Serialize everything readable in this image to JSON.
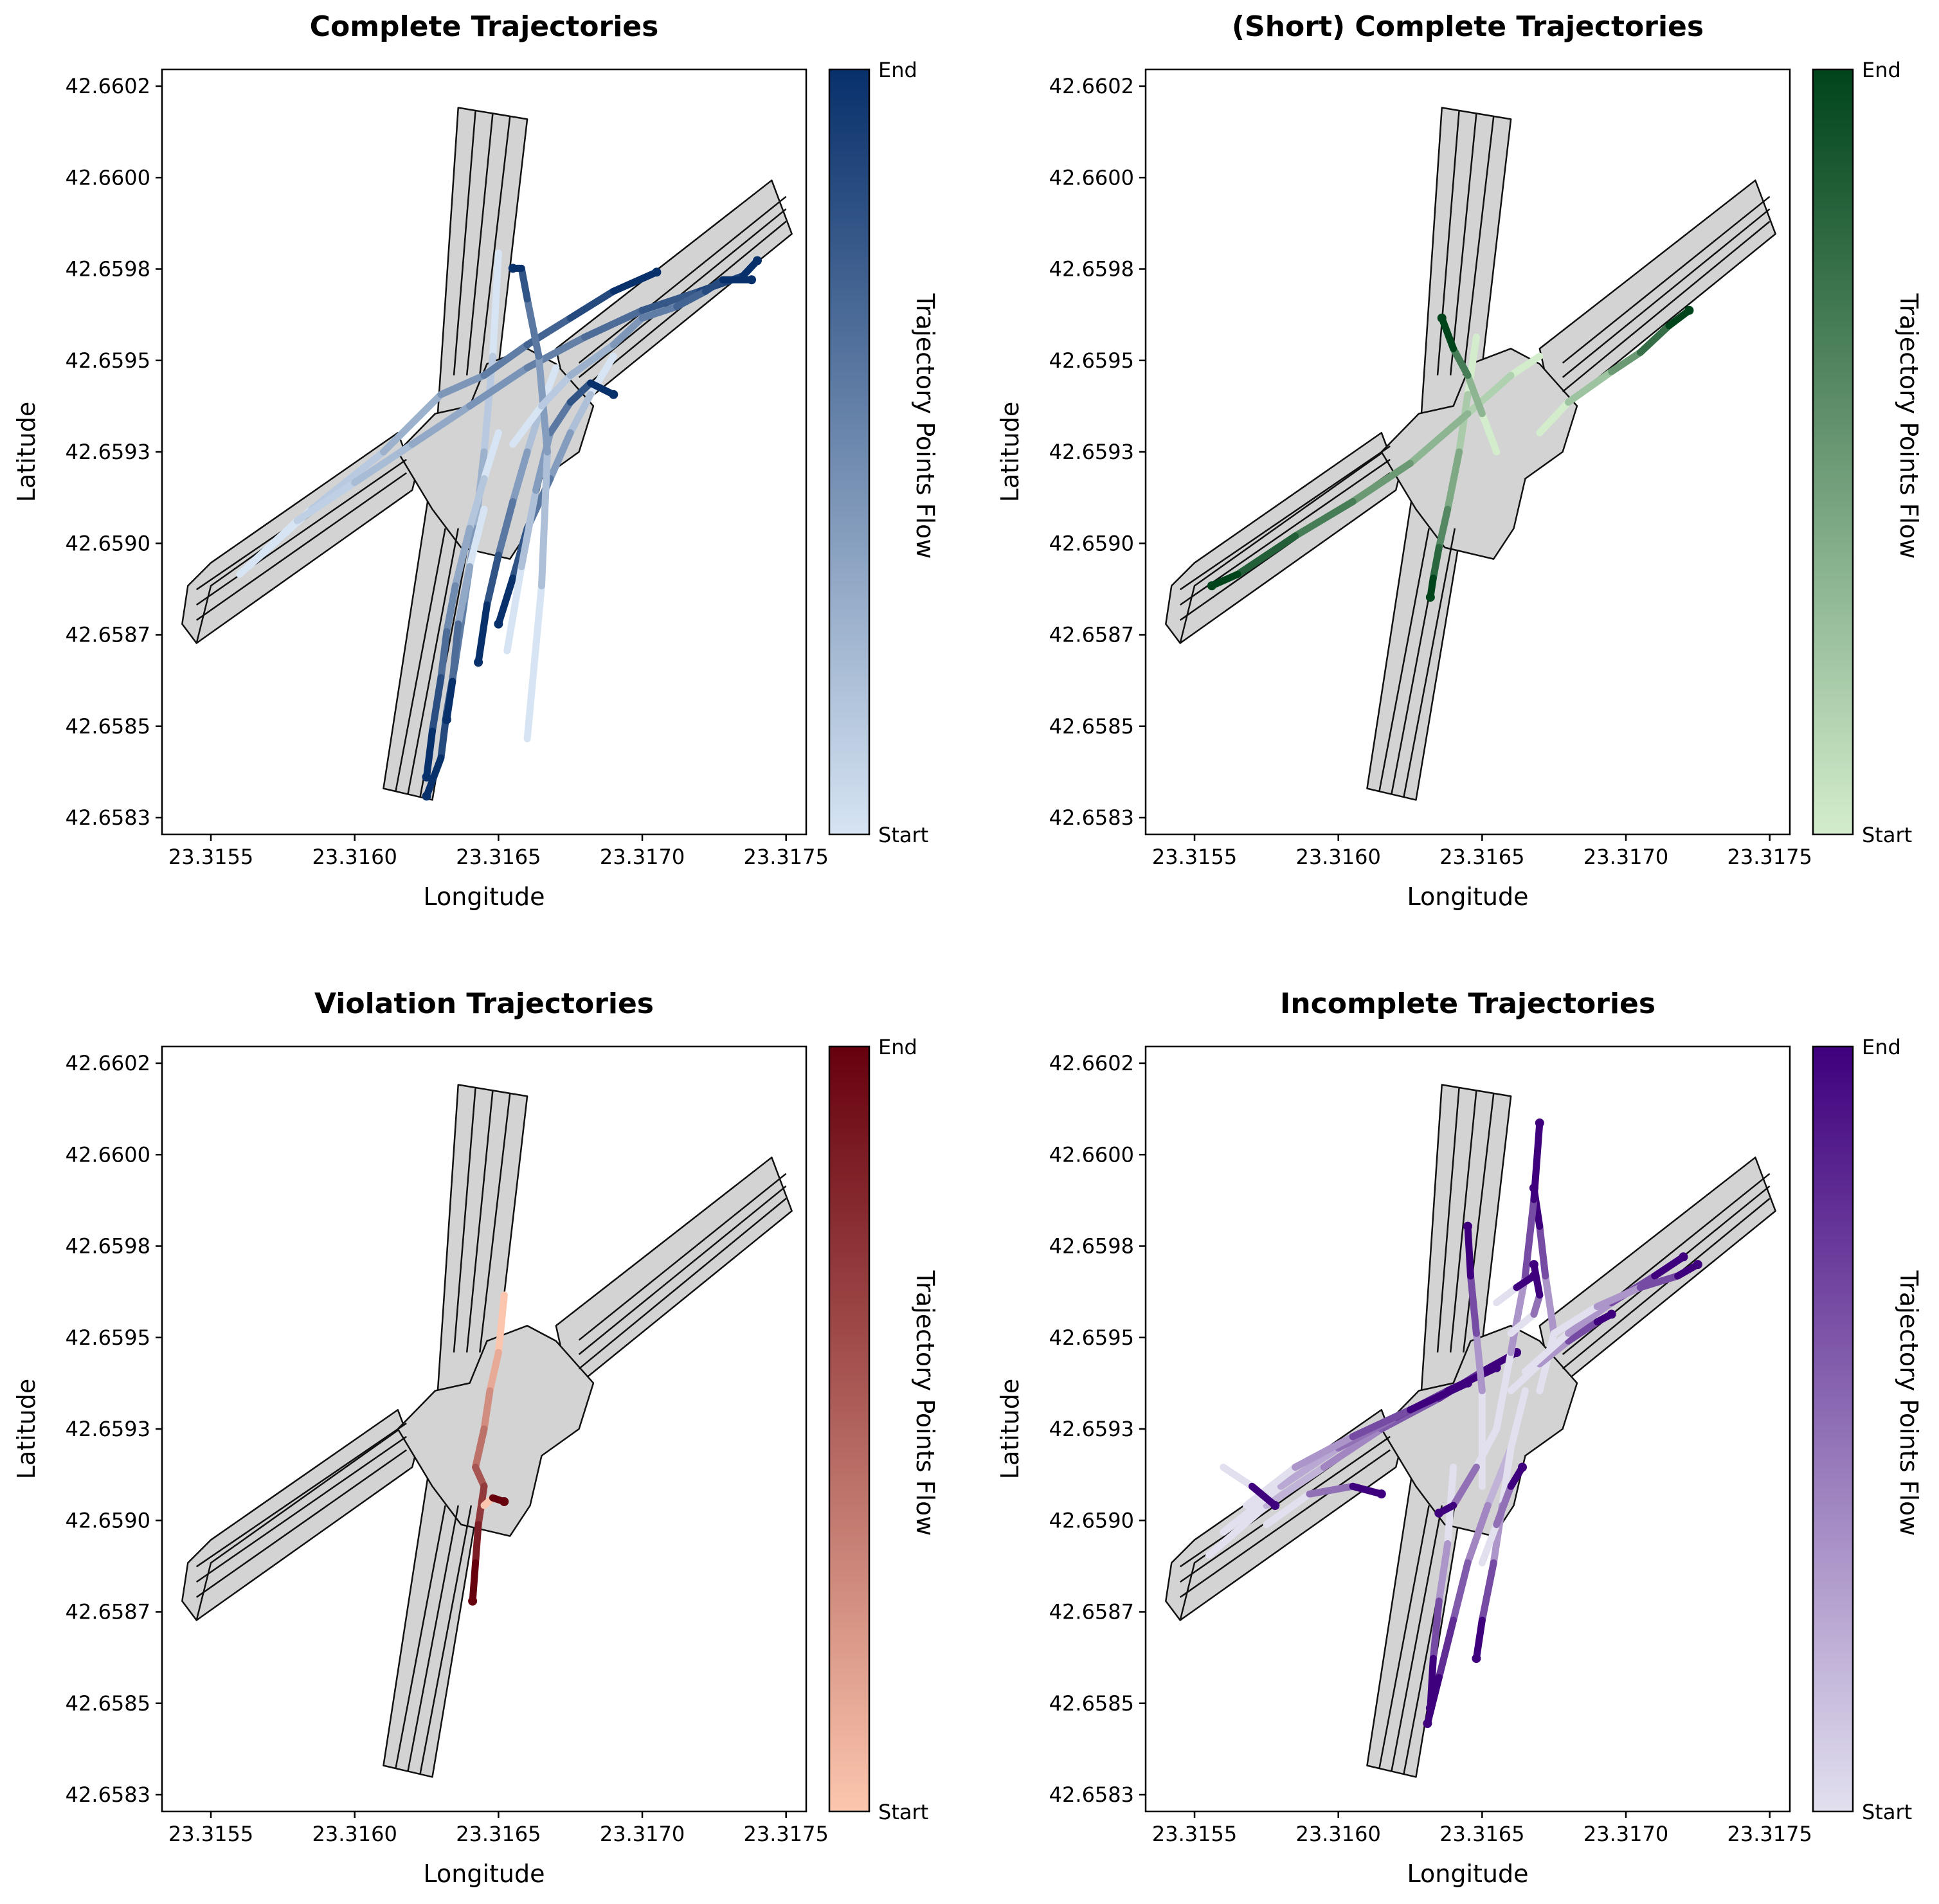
{
  "chart_data": [
    {
      "type": "scatter",
      "title": "Complete Trajectories",
      "xlabel": "Longitude",
      "ylabel": "Latitude",
      "colorbar_label": "Trajectory Points Flow",
      "colorbar_min_label": "Start",
      "colorbar_max_label": "End",
      "colormap": [
        "#d6e4f3",
        "#08306b"
      ],
      "xlim": [
        23.31533,
        23.31757
      ],
      "ylim": [
        42.65825,
        42.66025
      ],
      "xticks": [
        "23.3155",
        "23.3160",
        "23.3165",
        "23.3170",
        "23.3175"
      ],
      "yticks": [
        "42.6583",
        "42.6585",
        "42.6587",
        "42.6590",
        "42.6593",
        "42.6595",
        "42.6598",
        "42.6600",
        "42.6602"
      ],
      "series": [
        {
          "x": [
            23.3165,
            23.31648,
            23.31645,
            23.31642,
            23.31638,
            23.31635,
            23.31632,
            23.3163,
            23.31625
          ],
          "y": [
            42.65977,
            42.6595,
            42.65925,
            42.65905,
            42.65885,
            42.6587,
            42.65857,
            42.65845,
            42.65835
          ]
        },
        {
          "x": [
            23.31563,
            23.31585,
            23.3161,
            23.3163,
            23.31645,
            23.3166,
            23.31675,
            23.3169,
            23.31705
          ],
          "y": [
            42.65895,
            42.6591,
            42.65925,
            42.6594,
            42.65945,
            42.65953,
            42.6596,
            42.65967,
            42.65972
          ]
        },
        {
          "x": [
            23.3156,
            23.3158,
            23.316,
            23.3162,
            23.3164,
            23.3166,
            23.3168,
            23.317,
            23.3172,
            23.31735,
            23.3174
          ],
          "y": [
            42.65893,
            42.65907,
            42.65917,
            42.65927,
            42.65937,
            42.65947,
            42.65955,
            42.65962,
            42.65967,
            42.65971,
            42.65975
          ]
        },
        {
          "x": [
            23.3165,
            23.31645,
            23.3164,
            23.31635,
            23.31632,
            23.3163,
            23.31627,
            23.31625
          ],
          "y": [
            42.6593,
            42.65918,
            42.65905,
            42.6589,
            42.65878,
            42.65866,
            42.65852,
            42.6584
          ]
        },
        {
          "x": [
            23.3167,
            23.31665,
            23.3166,
            23.31655,
            23.3165,
            23.31646,
            23.31643
          ],
          "y": [
            42.65947,
            42.65937,
            42.65925,
            42.65912,
            42.65898,
            42.65885,
            42.6587
          ]
        },
        {
          "x": [
            23.3169,
            23.31682,
            23.31675,
            23.31668,
            23.3166,
            23.31655,
            23.3165
          ],
          "y": [
            42.6595,
            42.6594,
            42.6593,
            42.65918,
            42.65905,
            42.65892,
            42.6588
          ]
        },
        {
          "x": [
            23.31653,
            23.31658,
            23.31663,
            23.31668,
            23.31675,
            23.31682,
            23.3169
          ],
          "y": [
            42.65873,
            42.65895,
            42.65915,
            42.6593,
            42.65938,
            42.65943,
            42.6594
          ]
        },
        {
          "x": [
            23.3166,
            23.31665,
            23.31667,
            23.31664,
            23.3166,
            23.31658,
            23.31655
          ],
          "y": [
            42.6585,
            42.6589,
            42.65925,
            42.6595,
            42.65965,
            42.65973,
            42.65973
          ]
        },
        {
          "x": [
            23.31655,
            23.31665,
            23.31675,
            23.3169,
            23.317,
            23.31712,
            23.31722,
            23.31728,
            23.31738
          ],
          "y": [
            42.65927,
            42.65937,
            42.65945,
            42.65953,
            42.6596,
            42.65963,
            42.65967,
            42.6597,
            42.6597
          ]
        },
        {
          "x": [
            23.31645,
            23.3164,
            23.31636,
            23.31634,
            23.31632
          ],
          "y": [
            42.6591,
            42.65895,
            42.6588,
            42.65865,
            42.65855
          ]
        }
      ]
    },
    {
      "type": "scatter",
      "title": "(Short) Complete Trajectories",
      "xlabel": "Longitude",
      "ylabel": "Latitude",
      "colorbar_label": "Trajectory Points Flow",
      "colorbar_min_label": "Start",
      "colorbar_max_label": "End",
      "colormap": [
        "#d3edcc",
        "#00441b"
      ],
      "xlim": [
        23.31533,
        23.31757
      ],
      "ylim": [
        42.65825,
        42.66025
      ],
      "xticks": [
        "23.3155",
        "23.3160",
        "23.3165",
        "23.3170",
        "23.3175"
      ],
      "yticks": [
        "42.6583",
        "42.6585",
        "42.6587",
        "42.6590",
        "42.6593",
        "42.6595",
        "42.6598",
        "42.6600",
        "42.6602"
      ],
      "series": [
        {
          "x": [
            23.31648,
            23.31645,
            23.31642,
            23.31638,
            23.31635,
            23.31633,
            23.31632
          ],
          "y": [
            42.65955,
            42.6594,
            42.65925,
            42.6591,
            42.659,
            42.65892,
            42.65887
          ]
        },
        {
          "x": [
            23.3167,
            23.3166,
            23.31645,
            23.31625,
            23.31605,
            23.31585,
            23.31565,
            23.31556
          ],
          "y": [
            42.6595,
            42.65945,
            42.65935,
            42.65922,
            42.65912,
            42.65903,
            42.65893,
            42.6589
          ]
        },
        {
          "x": [
            23.3167,
            23.3168,
            23.31695,
            23.31705,
            23.31715,
            23.31722
          ],
          "y": [
            42.6593,
            42.65938,
            42.65946,
            42.65951,
            42.65958,
            42.65962
          ]
        },
        {
          "x": [
            23.31655,
            23.3165,
            23.31645,
            23.3164,
            23.31636
          ],
          "y": [
            42.65925,
            42.65935,
            42.65945,
            42.65952,
            42.6596
          ]
        }
      ]
    },
    {
      "type": "scatter",
      "title": "Violation Trajectories",
      "xlabel": "Longitude",
      "ylabel": "Latitude",
      "colorbar_label": "Trajectory Points Flow",
      "colorbar_min_label": "Start",
      "colorbar_max_label": "End",
      "colormap": [
        "#fcc6ae",
        "#67000d"
      ],
      "xlim": [
        23.31533,
        23.31757
      ],
      "ylim": [
        42.65825,
        42.66025
      ],
      "xticks": [
        "23.3155",
        "23.3160",
        "23.3165",
        "23.3170",
        "23.3175"
      ],
      "yticks": [
        "42.6583",
        "42.6585",
        "42.6587",
        "42.6590",
        "42.6593",
        "42.6595",
        "42.6598",
        "42.6600",
        "42.6602"
      ],
      "series": [
        {
          "x": [
            23.31652,
            23.3165,
            23.31647,
            23.31645,
            23.31642,
            23.31645,
            23.31643,
            23.31642,
            23.31641
          ],
          "y": [
            42.6596,
            42.65945,
            42.65935,
            42.65925,
            42.65915,
            42.6591,
            42.659,
            42.6589,
            42.6588
          ]
        },
        {
          "x": [
            23.31645,
            23.31648,
            23.31652
          ],
          "y": [
            42.65905,
            42.65907,
            42.65906
          ]
        }
      ]
    },
    {
      "type": "scatter",
      "title": "Incomplete Trajectories",
      "xlabel": "Longitude",
      "ylabel": "Latitude",
      "colorbar_label": "Trajectory Points Flow",
      "colorbar_min_label": "Start",
      "colorbar_max_label": "End",
      "colormap": [
        "#e2e0ef",
        "#3f007d"
      ],
      "xlim": [
        23.31533,
        23.31757
      ],
      "ylim": [
        42.65825,
        42.66025
      ],
      "xticks": [
        "23.3155",
        "23.3160",
        "23.3165",
        "23.3170",
        "23.3175"
      ],
      "yticks": [
        "42.6583",
        "42.6585",
        "42.6587",
        "42.6590",
        "42.6593",
        "42.6595",
        "42.6598",
        "42.6600",
        "42.6602"
      ],
      "series": [
        {
          "x": [
            23.31665,
            23.3166,
            23.31652,
            23.31645,
            23.3164,
            23.31635,
            23.31631
          ],
          "y": [
            42.65935,
            42.6592,
            42.65905,
            42.6589,
            42.65875,
            42.6586,
            42.65848
          ]
        },
        {
          "x": [
            23.31555,
            23.31575,
            23.31595,
            23.31615,
            23.31635,
            23.3165,
            23.31662
          ],
          "y": [
            42.65892,
            42.65905,
            42.65915,
            42.65925,
            42.65933,
            42.6594,
            42.65945
          ]
        },
        {
          "x": [
            23.3156,
            23.3158,
            23.316,
            23.3162,
            23.31638,
            23.31655
          ],
          "y": [
            42.65898,
            42.6591,
            42.6592,
            42.65928,
            42.65935,
            42.65941
          ]
        },
        {
          "x": [
            23.31568,
            23.31585,
            23.31605,
            23.31625,
            23.31645
          ],
          "y": [
            42.65905,
            42.65915,
            42.65923,
            42.6593,
            42.65937
          ]
        },
        {
          "x": [
            23.3167,
            23.31675,
            23.31672,
            23.3167,
            23.31668
          ],
          "y": [
            42.65935,
            42.6595,
            42.65965,
            42.65978,
            42.65988
          ]
        },
        {
          "x": [
            23.31655,
            23.3166,
            23.31665,
            23.31668,
            23.3167
          ],
          "y": [
            42.65925,
            42.65945,
            42.65965,
            42.65985,
            42.66005
          ]
        },
        {
          "x": [
            23.3165,
            23.3165,
            23.31648,
            23.31646,
            23.31645
          ],
          "y": [
            42.6591,
            42.65935,
            42.6595,
            42.65965,
            42.65978
          ]
        },
        {
          "x": [
            23.3166,
            23.3167,
            23.3168,
            23.3169,
            23.31695
          ],
          "y": [
            42.65935,
            42.65942,
            42.65948,
            42.65953,
            42.65955
          ]
        },
        {
          "x": [
            23.31665,
            23.3168,
            23.31695,
            23.3171,
            23.3172
          ],
          "y": [
            42.6594,
            42.6595,
            42.65958,
            42.65965,
            42.6597
          ]
        },
        {
          "x": [
            23.31675,
            23.3169,
            23.31705,
            23.31718,
            23.31725
          ],
          "y": [
            42.6595,
            42.65957,
            42.65962,
            42.65965,
            42.65968
          ]
        },
        {
          "x": [
            23.3164,
            23.31638,
            23.31635,
            23.31633,
            23.31632
          ],
          "y": [
            42.65915,
            42.65895,
            42.6588,
            42.65865,
            42.65852
          ]
        },
        {
          "x": [
            23.3166,
            23.31657,
            23.31654,
            23.3165,
            23.31648
          ],
          "y": [
            42.6592,
            42.65905,
            42.6589,
            42.65875,
            42.65865
          ]
        },
        {
          "x": [
            23.3166,
            23.31668,
            23.3167,
            23.31668
          ],
          "y": [
            42.6595,
            42.65955,
            42.6596,
            42.65968
          ]
        },
        {
          "x": [
            23.31655,
            23.31648,
            23.3164,
            23.31635
          ],
          "y": [
            42.65925,
            42.65915,
            42.65905,
            42.65903
          ]
        },
        {
          "x": [
            23.31575,
            23.3159,
            23.31605,
            23.31615
          ],
          "y": [
            42.659,
            42.65908,
            42.6591,
            42.65908
          ]
        },
        {
          "x": [
            23.3156,
            23.3157,
            23.31578
          ],
          "y": [
            42.65915,
            42.6591,
            42.65905
          ]
        },
        {
          "x": [
            23.31655,
            23.31662,
            23.31668
          ],
          "y": [
            42.65958,
            42.65962,
            42.65965
          ]
        },
        {
          "x": [
            23.3165,
            23.31655,
            23.3166,
            23.31664
          ],
          "y": [
            42.6589,
            42.659,
            42.6591,
            42.65915
          ]
        }
      ]
    }
  ]
}
